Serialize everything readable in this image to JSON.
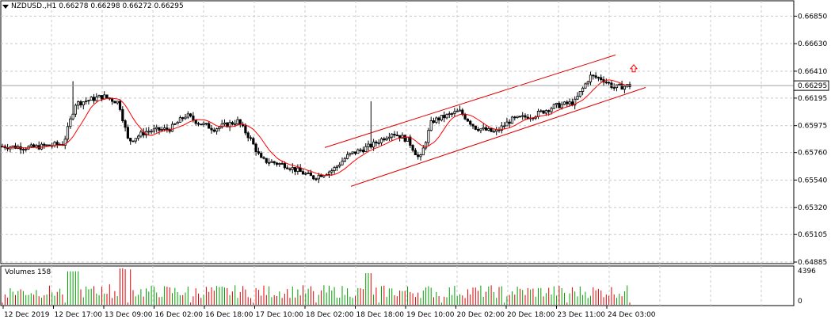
{
  "header": {
    "symbol": "NZDUSD.,H1",
    "ohlc": "0.66278 0.66298 0.66272 0.66295"
  },
  "volume_panel": {
    "label": "Volumes 158",
    "axis_top": "4396",
    "axis_zero": "0"
  },
  "colors": {
    "grid": "#c8c8c8",
    "candle": "#000000",
    "moving_average": "#ff0000",
    "channel": "#e00000",
    "volume_up": "#00a000",
    "volume_down": "#e00000",
    "current_price_box": "#ffffff",
    "signal_arrow": "#ff0000"
  },
  "icons": {
    "dropdown": "caret-down-icon",
    "signal": "up-arrow-icon"
  },
  "chart_data": {
    "type": "candlestick",
    "price_ticks": [
      "0.66850",
      "0.66630",
      "0.66410",
      "0.66295",
      "0.66195",
      "0.65975",
      "0.65760",
      "0.65540",
      "0.65320",
      "0.65105",
      "0.64885"
    ],
    "current_price": "0.66295",
    "x_ticks": [
      "12 Dec 2019",
      "12 Dec 17:00",
      "13 Dec 09:00",
      "16 Dec 02:00",
      "16 Dec 18:00",
      "17 Dec 10:00",
      "18 Dec 02:00",
      "18 Dec 18:00",
      "19 Dec 10:00",
      "20 Dec 02:00",
      "20 Dec 18:00",
      "23 Dec 11:00",
      "24 Dec 03:00"
    ],
    "price_range": [
      0.64885,
      0.6696
    ],
    "volume_max": 4396,
    "channel": {
      "upper": [
        [
          410,
          0.658
        ],
        [
          777,
          0.6654
        ]
      ],
      "lower": [
        [
          443,
          0.6549
        ],
        [
          815,
          0.6628
        ]
      ]
    },
    "grid": true
  }
}
